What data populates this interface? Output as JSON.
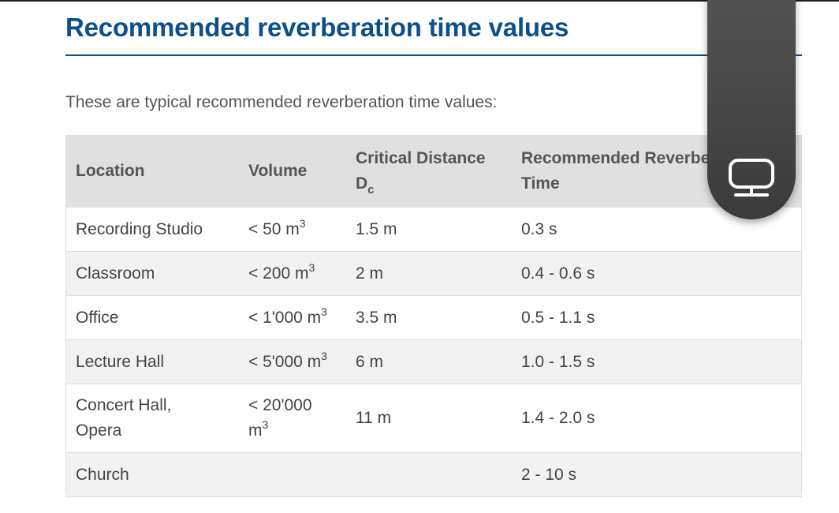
{
  "heading": "Recommended reverberation time values",
  "intro": "These are typical recommended reverberation time values:",
  "table": {
    "headers": {
      "location": "Location",
      "volume": "Volume",
      "critical_distance": "Critical Distance",
      "critical_distance_symbol": "D",
      "critical_distance_sub": "c",
      "reverb_line1": "Recommended Reverbe",
      "reverb_line2": "Time"
    },
    "rows": [
      {
        "location": "Recording Studio",
        "volume": "< 50 m",
        "volume_exp": "3",
        "distance": "1.5 m",
        "time": "0.3 s"
      },
      {
        "location": "Classroom",
        "volume": "< 200 m",
        "volume_exp": "3",
        "distance": "2 m",
        "time": "0.4 - 0.6 s"
      },
      {
        "location": "Office",
        "volume": "< 1'000 m",
        "volume_exp": "3",
        "distance": "3.5 m",
        "time": "0.5 - 1.1 s"
      },
      {
        "location": "Lecture Hall",
        "volume": "< 5'000 m",
        "volume_exp": "3",
        "distance": "6 m",
        "time": "1.0 - 1.5 s"
      },
      {
        "location_line1": "Concert Hall,",
        "location_line2": "Opera",
        "volume_line1": "< 20'000",
        "volume_line2": "m",
        "volume_exp": "3",
        "distance": "11 m",
        "time": "1.4 - 2.0 s"
      },
      {
        "location": "Church",
        "volume": "",
        "distance": "",
        "time": "2 - 10 s"
      }
    ]
  },
  "overlay": {
    "icon": "screen-icon"
  },
  "colors": {
    "heading": "#0d4f8b",
    "header_bg": "#e0e0e0",
    "stripe": "#f2f2f2"
  }
}
